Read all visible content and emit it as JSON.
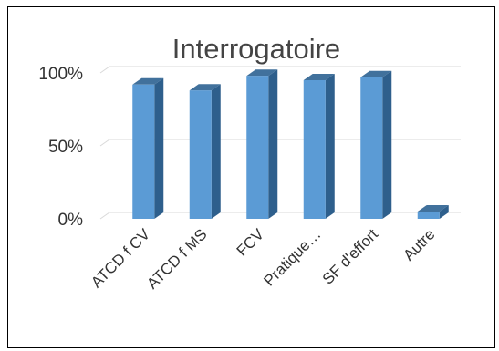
{
  "chart_data": {
    "type": "bar",
    "title": "Interrogatoire",
    "categories": [
      "ATCD f CV",
      "ATCD f MS",
      "FCV",
      "Pratique…",
      "SF d'effort",
      "Autre"
    ],
    "values": [
      92,
      88,
      98,
      95,
      97,
      5
    ],
    "y_ticks": [
      "0%",
      "50%",
      "100%"
    ],
    "ylim": [
      0,
      100
    ],
    "grid": true,
    "legend": "none",
    "colors": {
      "bar_front": "#5b9bd5",
      "bar_side": "#2e5f8c",
      "bar_top": "#41719c",
      "grid": "#d9d9d9"
    }
  }
}
